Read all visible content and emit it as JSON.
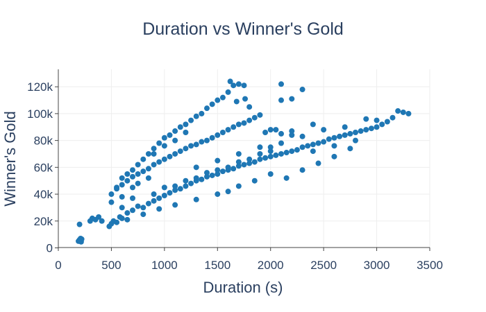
{
  "chart_data": {
    "type": "scatter",
    "title": "Duration vs Winner's Gold",
    "xlabel": "Duration (s)",
    "ylabel": "Winner's Gold",
    "xlim": [
      0,
      3500
    ],
    "ylim": [
      -3000,
      133000
    ],
    "x_ticks": [
      0,
      500,
      1000,
      1500,
      2000,
      2500,
      3000,
      3500
    ],
    "x_tick_labels": [
      "0",
      "500",
      "1000",
      "1500",
      "2000",
      "2500",
      "3000",
      "3500"
    ],
    "y_ticks": [
      0,
      20000,
      40000,
      60000,
      80000,
      100000,
      120000
    ],
    "y_tick_labels": [
      "0",
      "20k",
      "40k",
      "60k",
      "80k",
      "100k",
      "120k"
    ],
    "grid": true,
    "legend": "none",
    "marker_color": "#1f77b4",
    "series": [
      {
        "points": [
          [
            190,
            5000
          ],
          [
            200,
            6000
          ],
          [
            205,
            5500
          ],
          [
            210,
            7000
          ],
          [
            215,
            4500
          ],
          [
            200,
            17500
          ],
          [
            220,
            6500
          ],
          [
            300,
            20000
          ],
          [
            320,
            22000
          ],
          [
            350,
            21000
          ],
          [
            380,
            23000
          ],
          [
            410,
            20000
          ],
          [
            480,
            16000
          ],
          [
            500,
            18000
          ],
          [
            520,
            20000
          ],
          [
            550,
            19000
          ],
          [
            580,
            23000
          ],
          [
            600,
            22000
          ],
          [
            650,
            26000
          ],
          [
            700,
            28000
          ],
          [
            750,
            31000
          ],
          [
            800,
            30000
          ],
          [
            850,
            33000
          ],
          [
            900,
            35000
          ],
          [
            950,
            37000
          ],
          [
            1000,
            39000
          ],
          [
            1050,
            41000
          ],
          [
            1100,
            43000
          ],
          [
            1150,
            44000
          ],
          [
            1200,
            46000
          ],
          [
            1250,
            48000
          ],
          [
            1300,
            50000
          ],
          [
            1350,
            51000
          ],
          [
            1400,
            53000
          ],
          [
            1450,
            54000
          ],
          [
            1500,
            55000
          ],
          [
            1550,
            57000
          ],
          [
            1600,
            58000
          ],
          [
            1650,
            59000
          ],
          [
            1700,
            61000
          ],
          [
            1750,
            62000
          ],
          [
            1800,
            63000
          ],
          [
            1850,
            64000
          ],
          [
            1900,
            66000
          ],
          [
            1950,
            67000
          ],
          [
            2000,
            68000
          ],
          [
            2050,
            69000
          ],
          [
            2100,
            70000
          ],
          [
            2150,
            71000
          ],
          [
            2200,
            72000
          ],
          [
            2250,
            73000
          ],
          [
            2300,
            75000
          ],
          [
            2350,
            76000
          ],
          [
            2400,
            77000
          ],
          [
            2450,
            78000
          ],
          [
            2500,
            79000
          ],
          [
            2550,
            81000
          ],
          [
            2600,
            82000
          ],
          [
            2650,
            83000
          ],
          [
            2700,
            84000
          ],
          [
            2750,
            85000
          ],
          [
            2800,
            86000
          ],
          [
            2850,
            87000
          ],
          [
            2900,
            88000
          ],
          [
            2950,
            89000
          ],
          [
            3000,
            90000
          ],
          [
            3050,
            92000
          ],
          [
            3100,
            94000
          ],
          [
            3150,
            97000
          ],
          [
            3200,
            102000
          ],
          [
            3250,
            101000
          ],
          [
            3300,
            100000
          ],
          [
            2150,
            52000
          ],
          [
            2300,
            58000
          ],
          [
            2450,
            63000
          ],
          [
            2600,
            68000
          ],
          [
            2750,
            74000
          ],
          [
            1700,
            46000
          ],
          [
            1850,
            50000
          ],
          [
            2000,
            55000
          ],
          [
            1600,
            42000
          ],
          [
            1500,
            40000
          ],
          [
            1300,
            36000
          ],
          [
            1100,
            32000
          ],
          [
            950,
            29000
          ],
          [
            800,
            25000
          ],
          [
            650,
            21000
          ],
          [
            500,
            40000
          ],
          [
            550,
            44000
          ],
          [
            600,
            47000
          ],
          [
            650,
            50000
          ],
          [
            700,
            53000
          ],
          [
            750,
            55000
          ],
          [
            800,
            57000
          ],
          [
            850,
            59000
          ],
          [
            900,
            62000
          ],
          [
            950,
            64000
          ],
          [
            1000,
            66000
          ],
          [
            1050,
            68000
          ],
          [
            1100,
            70000
          ],
          [
            1150,
            72000
          ],
          [
            1200,
            74000
          ],
          [
            1250,
            76000
          ],
          [
            1300,
            77000
          ],
          [
            1350,
            79000
          ],
          [
            1400,
            80000
          ],
          [
            1450,
            82000
          ],
          [
            1500,
            84000
          ],
          [
            1550,
            86000
          ],
          [
            1600,
            88000
          ],
          [
            1650,
            90000
          ],
          [
            1700,
            92000
          ],
          [
            1750,
            93000
          ],
          [
            1800,
            95000
          ],
          [
            1850,
            97000
          ],
          [
            1900,
            99000
          ],
          [
            1950,
            86000
          ],
          [
            2050,
            88000
          ],
          [
            2100,
            85000
          ],
          [
            2200,
            87000
          ],
          [
            2300,
            83000
          ],
          [
            500,
            34000
          ],
          [
            600,
            38000
          ],
          [
            700,
            45000
          ],
          [
            750,
            48000
          ],
          [
            850,
            52000
          ],
          [
            550,
            45000
          ],
          [
            600,
            52000
          ],
          [
            650,
            55000
          ],
          [
            700,
            58000
          ],
          [
            750,
            62000
          ],
          [
            800,
            66000
          ],
          [
            850,
            70000
          ],
          [
            900,
            74000
          ],
          [
            950,
            78000
          ],
          [
            1000,
            82000
          ],
          [
            1050,
            84000
          ],
          [
            1100,
            87000
          ],
          [
            1150,
            90000
          ],
          [
            1200,
            92000
          ],
          [
            1250,
            95000
          ],
          [
            1300,
            98000
          ],
          [
            1350,
            100000
          ],
          [
            1400,
            104000
          ],
          [
            1450,
            107000
          ],
          [
            1500,
            110000
          ],
          [
            1550,
            112000
          ],
          [
            1600,
            116000
          ],
          [
            1650,
            121000
          ],
          [
            1700,
            122000
          ],
          [
            1620,
            124000
          ],
          [
            1750,
            121000
          ],
          [
            1680,
            109000
          ],
          [
            1760,
            111000
          ],
          [
            1800,
            105000
          ],
          [
            600,
            30000
          ],
          [
            700,
            37000
          ],
          [
            900,
            70000
          ],
          [
            1000,
            76000
          ],
          [
            1100,
            80000
          ],
          [
            1200,
            86000
          ],
          [
            2100,
            122000
          ],
          [
            2300,
            118000
          ],
          [
            2100,
            110000
          ],
          [
            2200,
            111000
          ],
          [
            2000,
            88000
          ],
          [
            2200,
            84000
          ],
          [
            2000,
            75000
          ],
          [
            2400,
            72000
          ],
          [
            2600,
            76000
          ],
          [
            2800,
            80000
          ],
          [
            2400,
            92000
          ],
          [
            2500,
            88000
          ],
          [
            2700,
            90000
          ],
          [
            2900,
            96000
          ],
          [
            3000,
            95000
          ],
          [
            1000,
            45000
          ],
          [
            1200,
            50000
          ],
          [
            1400,
            56000
          ],
          [
            1600,
            60000
          ],
          [
            1800,
            66000
          ],
          [
            2000,
            72000
          ],
          [
            900,
            40000
          ],
          [
            1100,
            46000
          ],
          [
            1300,
            52000
          ],
          [
            1500,
            58000
          ],
          [
            1700,
            64000
          ],
          [
            1900,
            70000
          ],
          [
            1300,
            60000
          ],
          [
            1500,
            65000
          ],
          [
            1700,
            70000
          ],
          [
            1900,
            75000
          ],
          [
            2100,
            78000
          ]
        ]
      }
    ]
  }
}
